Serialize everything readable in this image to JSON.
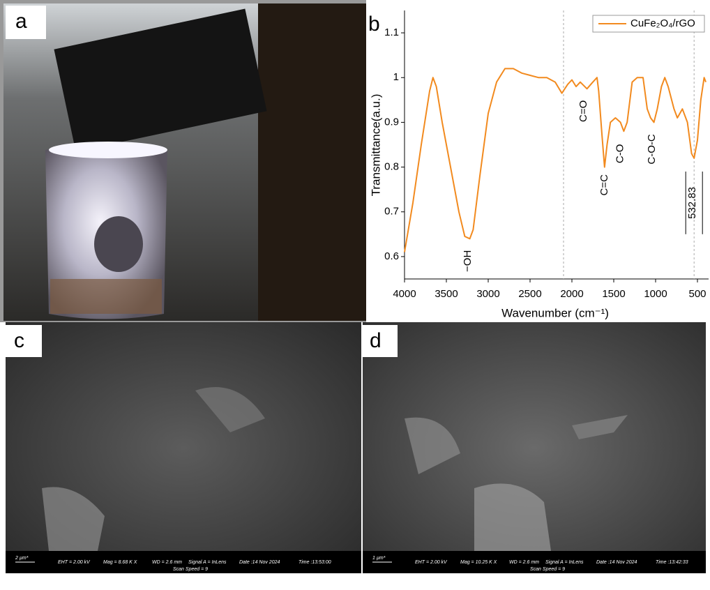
{
  "chart_data": {
    "type": "line",
    "x_label": "Wavenumber (cm⁻¹)",
    "y_label": "Transmittance(a.u.)",
    "x": [
      4000,
      3900,
      3800,
      3700,
      3660,
      3620,
      3550,
      3450,
      3350,
      3280,
      3220,
      3180,
      3100,
      3000,
      2900,
      2800,
      2700,
      2600,
      2500,
      2400,
      2300,
      2200,
      2120,
      2050,
      2000,
      1950,
      1900,
      1820,
      1750,
      1700,
      1680,
      1640,
      1610,
      1580,
      1540,
      1480,
      1420,
      1380,
      1340,
      1280,
      1220,
      1150,
      1100,
      1060,
      1020,
      980,
      930,
      890,
      850,
      780,
      740,
      680,
      620,
      570,
      540,
      500,
      460,
      420,
      400
    ],
    "series": [
      {
        "name": "CuFe₂O₄/rGO",
        "color": "#f28a1e",
        "values": [
          0.61,
          0.72,
          0.85,
          0.97,
          1.0,
          0.98,
          0.9,
          0.8,
          0.7,
          0.645,
          0.64,
          0.66,
          0.78,
          0.92,
          0.99,
          1.02,
          1.02,
          1.01,
          1.005,
          1.0,
          1.0,
          0.99,
          0.965,
          0.985,
          0.995,
          0.98,
          0.99,
          0.975,
          0.99,
          1.0,
          0.97,
          0.87,
          0.8,
          0.85,
          0.9,
          0.91,
          0.9,
          0.88,
          0.9,
          0.99,
          1.0,
          1.0,
          0.93,
          0.91,
          0.9,
          0.93,
          0.98,
          1.0,
          0.98,
          0.93,
          0.91,
          0.93,
          0.9,
          0.83,
          0.82,
          0.86,
          0.95,
          1.0,
          0.99
        ]
      }
    ],
    "xlim": [
      4000,
      400
    ],
    "ylim": [
      0.55,
      1.15
    ],
    "xticks": [
      4000,
      3500,
      3000,
      2500,
      2000,
      1500,
      1000,
      500
    ],
    "yticks": [
      0.6,
      0.7,
      0.8,
      0.9,
      1,
      1.1
    ],
    "annotations": [
      "−OH",
      "C=O",
      "C=C",
      "C-O",
      "C-O-C",
      "532.83"
    ],
    "legend": "top-right"
  },
  "panels": {
    "a": "a",
    "b": "b",
    "c": "c",
    "d": "d",
    "c_info": {
      "scale": "2 µm*",
      "eht": "EHT = 2.00 kV",
      "mag": "Mag = 8.68 K X",
      "wd": "WD = 2.6 mm",
      "signal": "Signal A = InLens",
      "date": "Date :14 Nov 2024",
      "time": "Time :13:53:00",
      "speed": "Scan Speed = 9"
    },
    "d_info": {
      "scale": "1 µm*",
      "eht": "EHT = 2.00 kV",
      "mag": "Mag = 10.25 K X",
      "wd": "WD = 2.6 mm",
      "signal": "Signal A = InLens",
      "date": "Date :14 Nov 2024",
      "time": "Time :13:42:33",
      "speed": "Scan Speed = 9"
    }
  }
}
